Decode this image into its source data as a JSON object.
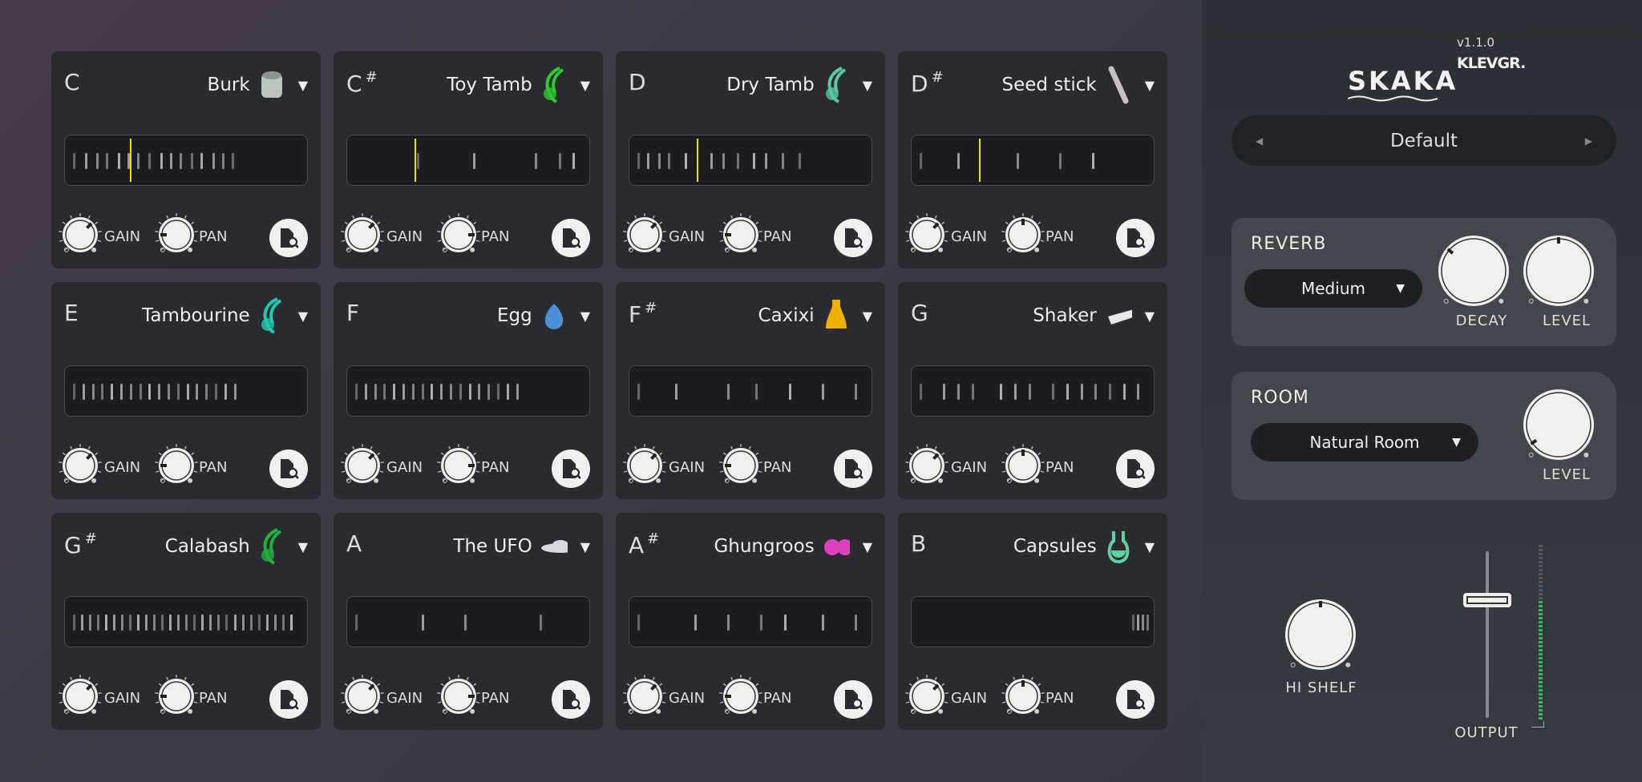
{
  "pads": [
    {
      "note": "C",
      "sharp": false,
      "name": "Burk",
      "icon": "drum-icon",
      "color": "#b8c4bc"
    },
    {
      "note": "C",
      "sharp": true,
      "name": "Toy Tamb",
      "icon": "toy-tambourine-icon",
      "color": "#2cc832"
    },
    {
      "note": "D",
      "sharp": false,
      "name": "Dry Tamb",
      "icon": "tambourine-icon",
      "color": "#5cc8a8"
    },
    {
      "note": "D",
      "sharp": true,
      "name": "Seed stick",
      "icon": "seed-stick-icon",
      "color": "#c8c0c0"
    },
    {
      "note": "E",
      "sharp": false,
      "name": "Tambourine",
      "icon": "tambourine-icon",
      "color": "#20c8b0"
    },
    {
      "note": "F",
      "sharp": false,
      "name": "Egg",
      "icon": "egg-icon",
      "color": "#4a90d8"
    },
    {
      "note": "F",
      "sharp": true,
      "name": "Caxixi",
      "icon": "caxixi-icon",
      "color": "#f0b000"
    },
    {
      "note": "G",
      "sharp": false,
      "name": "Shaker",
      "icon": "shaker-icon",
      "color": "#e8e8e8"
    },
    {
      "note": "G",
      "sharp": true,
      "name": "Calabash",
      "icon": "calabash-icon",
      "color": "#20b040"
    },
    {
      "note": "A",
      "sharp": false,
      "name": "The UFO",
      "icon": "ufo-icon",
      "color": "#d8d8e0"
    },
    {
      "note": "A",
      "sharp": true,
      "name": "Ghungroos",
      "icon": "ghungroos-icon",
      "color": "#e040c0"
    },
    {
      "note": "B",
      "sharp": false,
      "name": "Capsules",
      "icon": "capsules-icon",
      "color": "#60d0a0"
    }
  ],
  "sharp_symbol": "#",
  "gain_label": "GAIN",
  "pan_label": "PAN",
  "header": {
    "logo": "SKAKA",
    "version": "v1.1.0",
    "brand": "KLEVGR."
  },
  "preset": {
    "name": "Default"
  },
  "reverb": {
    "title": "REVERB",
    "type": "Medium",
    "decay_label": "DECAY",
    "level_label": "LEVEL"
  },
  "room": {
    "title": "ROOM",
    "type": "Natural Room",
    "level_label": "LEVEL"
  },
  "hi_shelf_label": "HI SHELF",
  "output_label": "OUTPUT",
  "colors": {
    "playhead": "#f0e000",
    "meter": "#20c060"
  }
}
